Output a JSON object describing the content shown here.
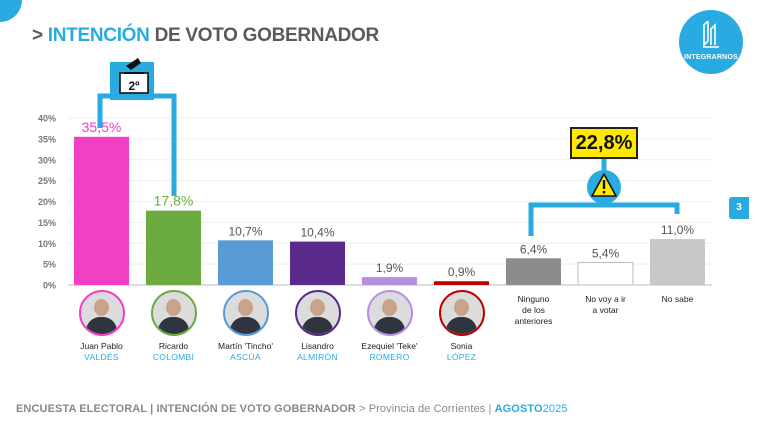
{
  "header": {
    "prefix": "> ",
    "title_highlight": "INTENCIÓN",
    "title_rest": " DE VOTO GOBERNADOR"
  },
  "logo": {
    "name": "INTEGRARNOS"
  },
  "page_number": "3",
  "ballot_badge": {
    "label": "2º"
  },
  "not_voting_total": {
    "label": "22,8%"
  },
  "chart_data": {
    "type": "bar",
    "title": "INTENCIÓN DE VOTO GOBERNADOR",
    "ylim": [
      0,
      40
    ],
    "yticks": [
      "0%",
      "5%",
      "10%",
      "15%",
      "20%",
      "25%",
      "30%",
      "35%",
      "40%"
    ],
    "ytick_values": [
      0,
      5,
      10,
      15,
      20,
      25,
      30,
      35,
      40
    ],
    "categories": [
      "Juan Pablo Valdés",
      "Ricardo Colombi",
      "Martín 'Tincho' Ascúa",
      "Lisandro Almirón",
      "Ezequiel 'Teke' Romero",
      "Sonia López",
      "Ninguno de los anteriores",
      "No voy a ir a votar",
      "No sabe"
    ],
    "values": [
      35.5,
      17.8,
      10.7,
      10.4,
      1.9,
      0.9,
      6.4,
      5.4,
      11.0
    ],
    "labels": [
      "35,5%",
      "17,8%",
      "10,7%",
      "10,4%",
      "1,9%",
      "0,9%",
      "6,4%",
      "5,4%",
      "11,0%"
    ],
    "colors": [
      "#f23fc3",
      "#6bab3f",
      "#5b9bd5",
      "#5b2a8a",
      "#b98ee0",
      "#c00000",
      "#8c8c8c",
      "#ffffff",
      "#c8c8c8"
    ],
    "label_colors": [
      "#f23fc3",
      "#6bab3f",
      "#555555",
      "#555555",
      "#555555",
      "#555555",
      "#555555",
      "#555555",
      "#555555"
    ]
  },
  "candidates": [
    {
      "first": "Juan Pablo",
      "last": "VALDÉS",
      "ring": "#f23fc3"
    },
    {
      "first": "Ricardo",
      "last": "COLOMBI",
      "ring": "#6bab3f"
    },
    {
      "first": "Martín 'Tincho'",
      "last": "ASCÚA",
      "ring": "#5b9bd5"
    },
    {
      "first": "Lisandro",
      "last": "ALMIRÓN",
      "ring": "#5b2a8a"
    },
    {
      "first": "Ezequiel 'Teke'",
      "last": "ROMERO",
      "ring": "#b98ee0"
    },
    {
      "first": "Sonia",
      "last": "LÓPEZ",
      "ring": "#c00000"
    }
  ],
  "other_options": [
    {
      "line1": "Ninguno",
      "line2": "de los",
      "line3": "anteriores"
    },
    {
      "line1": "No voy a ir",
      "line2": "a votar",
      "line3": ""
    },
    {
      "line1": "No sabe",
      "line2": "",
      "line3": ""
    }
  ],
  "footer": {
    "main": "ENCUESTA ELECTORAL | INTENCIÓN DE VOTO GOBERNADOR",
    "sep": " > ",
    "region": "Provincia de Corrientes",
    "pipe": " | ",
    "month": "AGOSTO",
    "year": "2025"
  }
}
